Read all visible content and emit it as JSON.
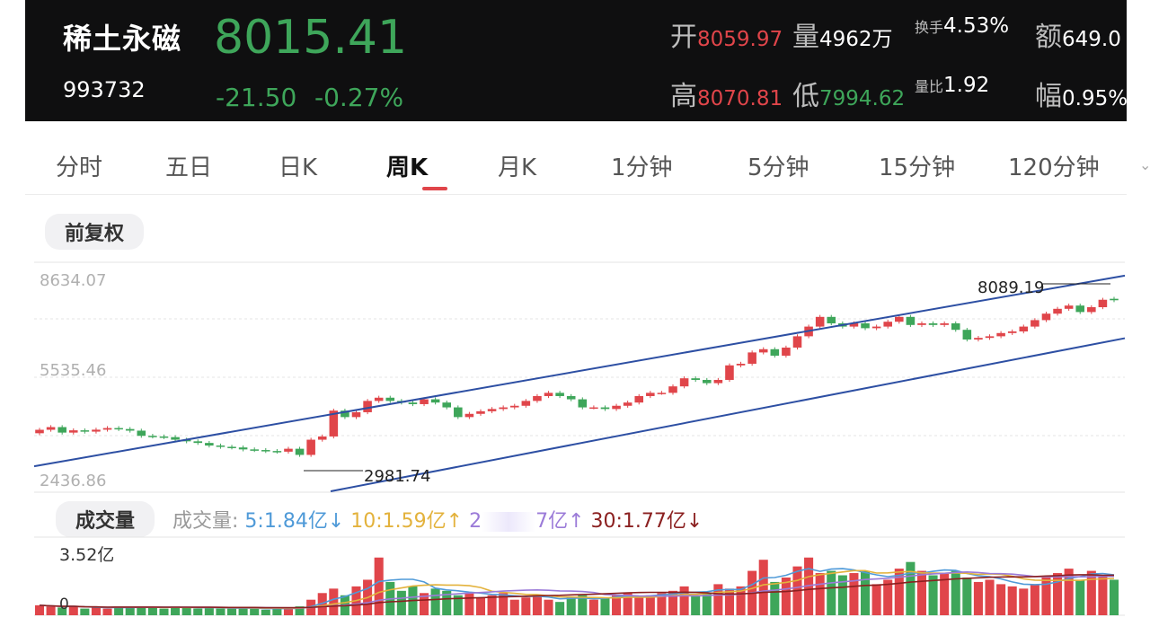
{
  "stock": {
    "name": "稀土永磁",
    "code": "993732",
    "price": "8015.41",
    "change": "-21.50",
    "change_pct": "-0.27%"
  },
  "stats": {
    "open_label": "开",
    "open": "8059.97",
    "volume_label": "量",
    "volume": "4962万",
    "turnover_label": "换手",
    "turnover": "4.53%",
    "amount_label": "额",
    "amount": "649.0",
    "high_label": "高",
    "high": "8070.81",
    "low_label": "低",
    "low": "7994.62",
    "vol_ratio_label": "量比",
    "vol_ratio": "1.92",
    "amp_label": "幅",
    "amp": "0.95%"
  },
  "tabs": [
    "分时",
    "五日",
    "日K",
    "周K",
    "月K",
    "1分钟",
    "5分钟",
    "15分钟",
    "120分钟"
  ],
  "active_tab": "周K",
  "adjust_label": "前复权",
  "volume_panel": {
    "label": "成交量",
    "legend_prefix": "成交量:",
    "ma5": "5:1.84亿↓",
    "ma10": "10:1.59亿↑",
    "ma20_partial": "2",
    "ma20_tail": "7亿↑",
    "ma30": "30:1.77亿↓",
    "max_label": "3.52亿",
    "zero_label": "0"
  },
  "colors": {
    "up": "#e0454a",
    "down": "#3ea65a",
    "channel": "#2d4fa3",
    "ma5": "#4f9ad8",
    "ma10": "#e3b23c",
    "ma20": "#9b7bd8",
    "ma30": "#8b2020"
  },
  "chart_data": {
    "type": "candlestick",
    "y_axis_labels": [
      "8634.07",
      "5535.46",
      "2436.86"
    ],
    "ylim": [
      2436.86,
      8634.07
    ],
    "annotations": [
      {
        "text": "8089.19",
        "value": 8089.19
      },
      {
        "text": "2981.74",
        "value": 2981.74
      }
    ],
    "closes": [
      4007,
      4090,
      3920,
      3990,
      3950,
      4010,
      4060,
      4030,
      3980,
      3820,
      3800,
      3780,
      3700,
      3650,
      3600,
      3520,
      3480,
      3460,
      3400,
      3380,
      3350,
      3330,
      3420,
      3230,
      3700,
      3800,
      4600,
      4400,
      4550,
      4900,
      5000,
      4900,
      4850,
      4800,
      4950,
      4850,
      4700,
      4400,
      4500,
      4580,
      4650,
      4700,
      4750,
      4900,
      5050,
      5150,
      5050,
      4950,
      4700,
      4700,
      4650,
      4750,
      4850,
      5050,
      5150,
      5150,
      5350,
      5600,
      5550,
      5450,
      5550,
      6000,
      6050,
      6400,
      6500,
      6300,
      6550,
      6900,
      7200,
      7500,
      7300,
      7200,
      7300,
      7150,
      7200,
      7350,
      7500,
      7250,
      7300,
      7250,
      7300,
      7100,
      6800,
      6850,
      6900,
      7000,
      7050,
      7200,
      7400,
      7600,
      7750,
      7850,
      7650,
      7800,
      8030,
      8015
    ],
    "opens": [
      3900,
      4007,
      4090,
      3920,
      3990,
      3950,
      4010,
      4060,
      4030,
      3980,
      3820,
      3800,
      3780,
      3700,
      3650,
      3600,
      3520,
      3480,
      3460,
      3400,
      3380,
      3350,
      3330,
      3420,
      3230,
      3700,
      3800,
      4600,
      4400,
      4550,
      4900,
      5000,
      4900,
      4850,
      4800,
      4950,
      4850,
      4700,
      4400,
      4500,
      4580,
      4650,
      4700,
      4750,
      4900,
      5050,
      5150,
      5050,
      4950,
      4700,
      4700,
      4650,
      4750,
      4850,
      5050,
      5150,
      5150,
      5350,
      5600,
      5550,
      5450,
      5550,
      6000,
      6050,
      6400,
      6500,
      6300,
      6550,
      6900,
      7200,
      7500,
      7300,
      7200,
      7300,
      7150,
      7200,
      7350,
      7500,
      7250,
      7300,
      7250,
      7300,
      7100,
      6800,
      6850,
      6900,
      7000,
      7050,
      7200,
      7400,
      7600,
      7750,
      7850,
      7650,
      7800,
      8060
    ],
    "volumes_yi": [
      0.45,
      0.4,
      0.35,
      0.4,
      0.3,
      0.35,
      0.3,
      0.4,
      0.35,
      0.4,
      0.35,
      0.3,
      0.4,
      0.35,
      0.3,
      0.35,
      0.3,
      0.3,
      0.35,
      0.3,
      0.25,
      0.3,
      0.3,
      0.4,
      0.7,
      1.0,
      1.2,
      0.9,
      1.3,
      1.6,
      2.6,
      1.5,
      1.1,
      1.3,
      1.0,
      1.2,
      1.1,
      0.9,
      1.0,
      0.8,
      0.9,
      1.0,
      0.7,
      0.8,
      0.9,
      0.7,
      0.6,
      0.8,
      0.9,
      0.7,
      0.8,
      0.9,
      1.0,
      0.8,
      0.9,
      1.0,
      1.1,
      1.3,
      0.9,
      1.0,
      1.4,
      1.2,
      1.3,
      2.0,
      2.5,
      1.5,
      1.7,
      2.2,
      2.6,
      1.9,
      2.0,
      1.8,
      1.9,
      2.0,
      1.4,
      1.6,
      2.1,
      2.4,
      2.0,
      1.8,
      1.9,
      2.0,
      1.7,
      1.5,
      1.6,
      1.4,
      1.3,
      1.2,
      1.4,
      1.7,
      1.9,
      2.1,
      1.6,
      2.0,
      1.8,
      1.6
    ],
    "channel_upper": [
      [
        0,
        3100
      ],
      [
        95,
        8720
      ]
    ],
    "channel_lower": [
      [
        25,
        2436.86
      ],
      [
        95,
        6840
      ]
    ]
  }
}
